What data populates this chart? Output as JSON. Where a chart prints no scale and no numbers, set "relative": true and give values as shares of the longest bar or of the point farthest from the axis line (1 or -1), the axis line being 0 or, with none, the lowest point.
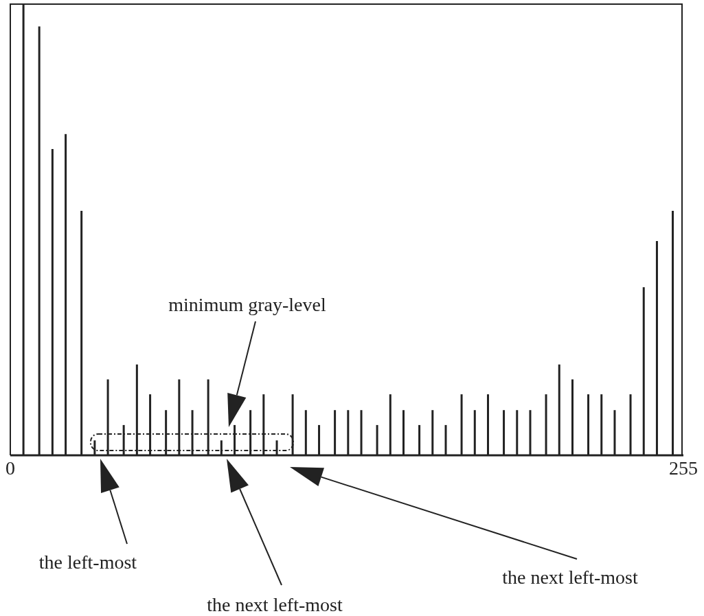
{
  "chart_data": {
    "type": "bar",
    "relative": true,
    "x": [
      5,
      11,
      16,
      21,
      27,
      32,
      37,
      43,
      48,
      53,
      59,
      64,
      69,
      75,
      80,
      85,
      91,
      96,
      101,
      107,
      112,
      117,
      123,
      128,
      133,
      139,
      144,
      149,
      155,
      160,
      165,
      171,
      176,
      181,
      187,
      192,
      197,
      203,
      208,
      213,
      219,
      224,
      229,
      235,
      240,
      245,
      251
    ],
    "values": [
      1,
      0.949,
      0.678,
      0.711,
      0.541,
      0.033,
      0.168,
      0.067,
      0.201,
      0.135,
      0.1,
      0.168,
      0.1,
      0.168,
      0.033,
      0.067,
      0.1,
      0.135,
      0.033,
      0.135,
      0.1,
      0.067,
      0.1,
      0.1,
      0.1,
      0.067,
      0.135,
      0.1,
      0.067,
      0.1,
      0.067,
      0.135,
      0.1,
      0.135,
      0.1,
      0.1,
      0.1,
      0.135,
      0.201,
      0.168,
      0.135,
      0.135,
      0.1,
      0.135,
      0.372,
      0.474,
      0.541
    ],
    "color": "#222222",
    "xlim": [
      0,
      255
    ],
    "xticks": [
      0,
      255
    ],
    "annotations": [
      "minimum gray-level",
      "the left-most",
      "the next left-most",
      "the next left-most"
    ]
  }
}
